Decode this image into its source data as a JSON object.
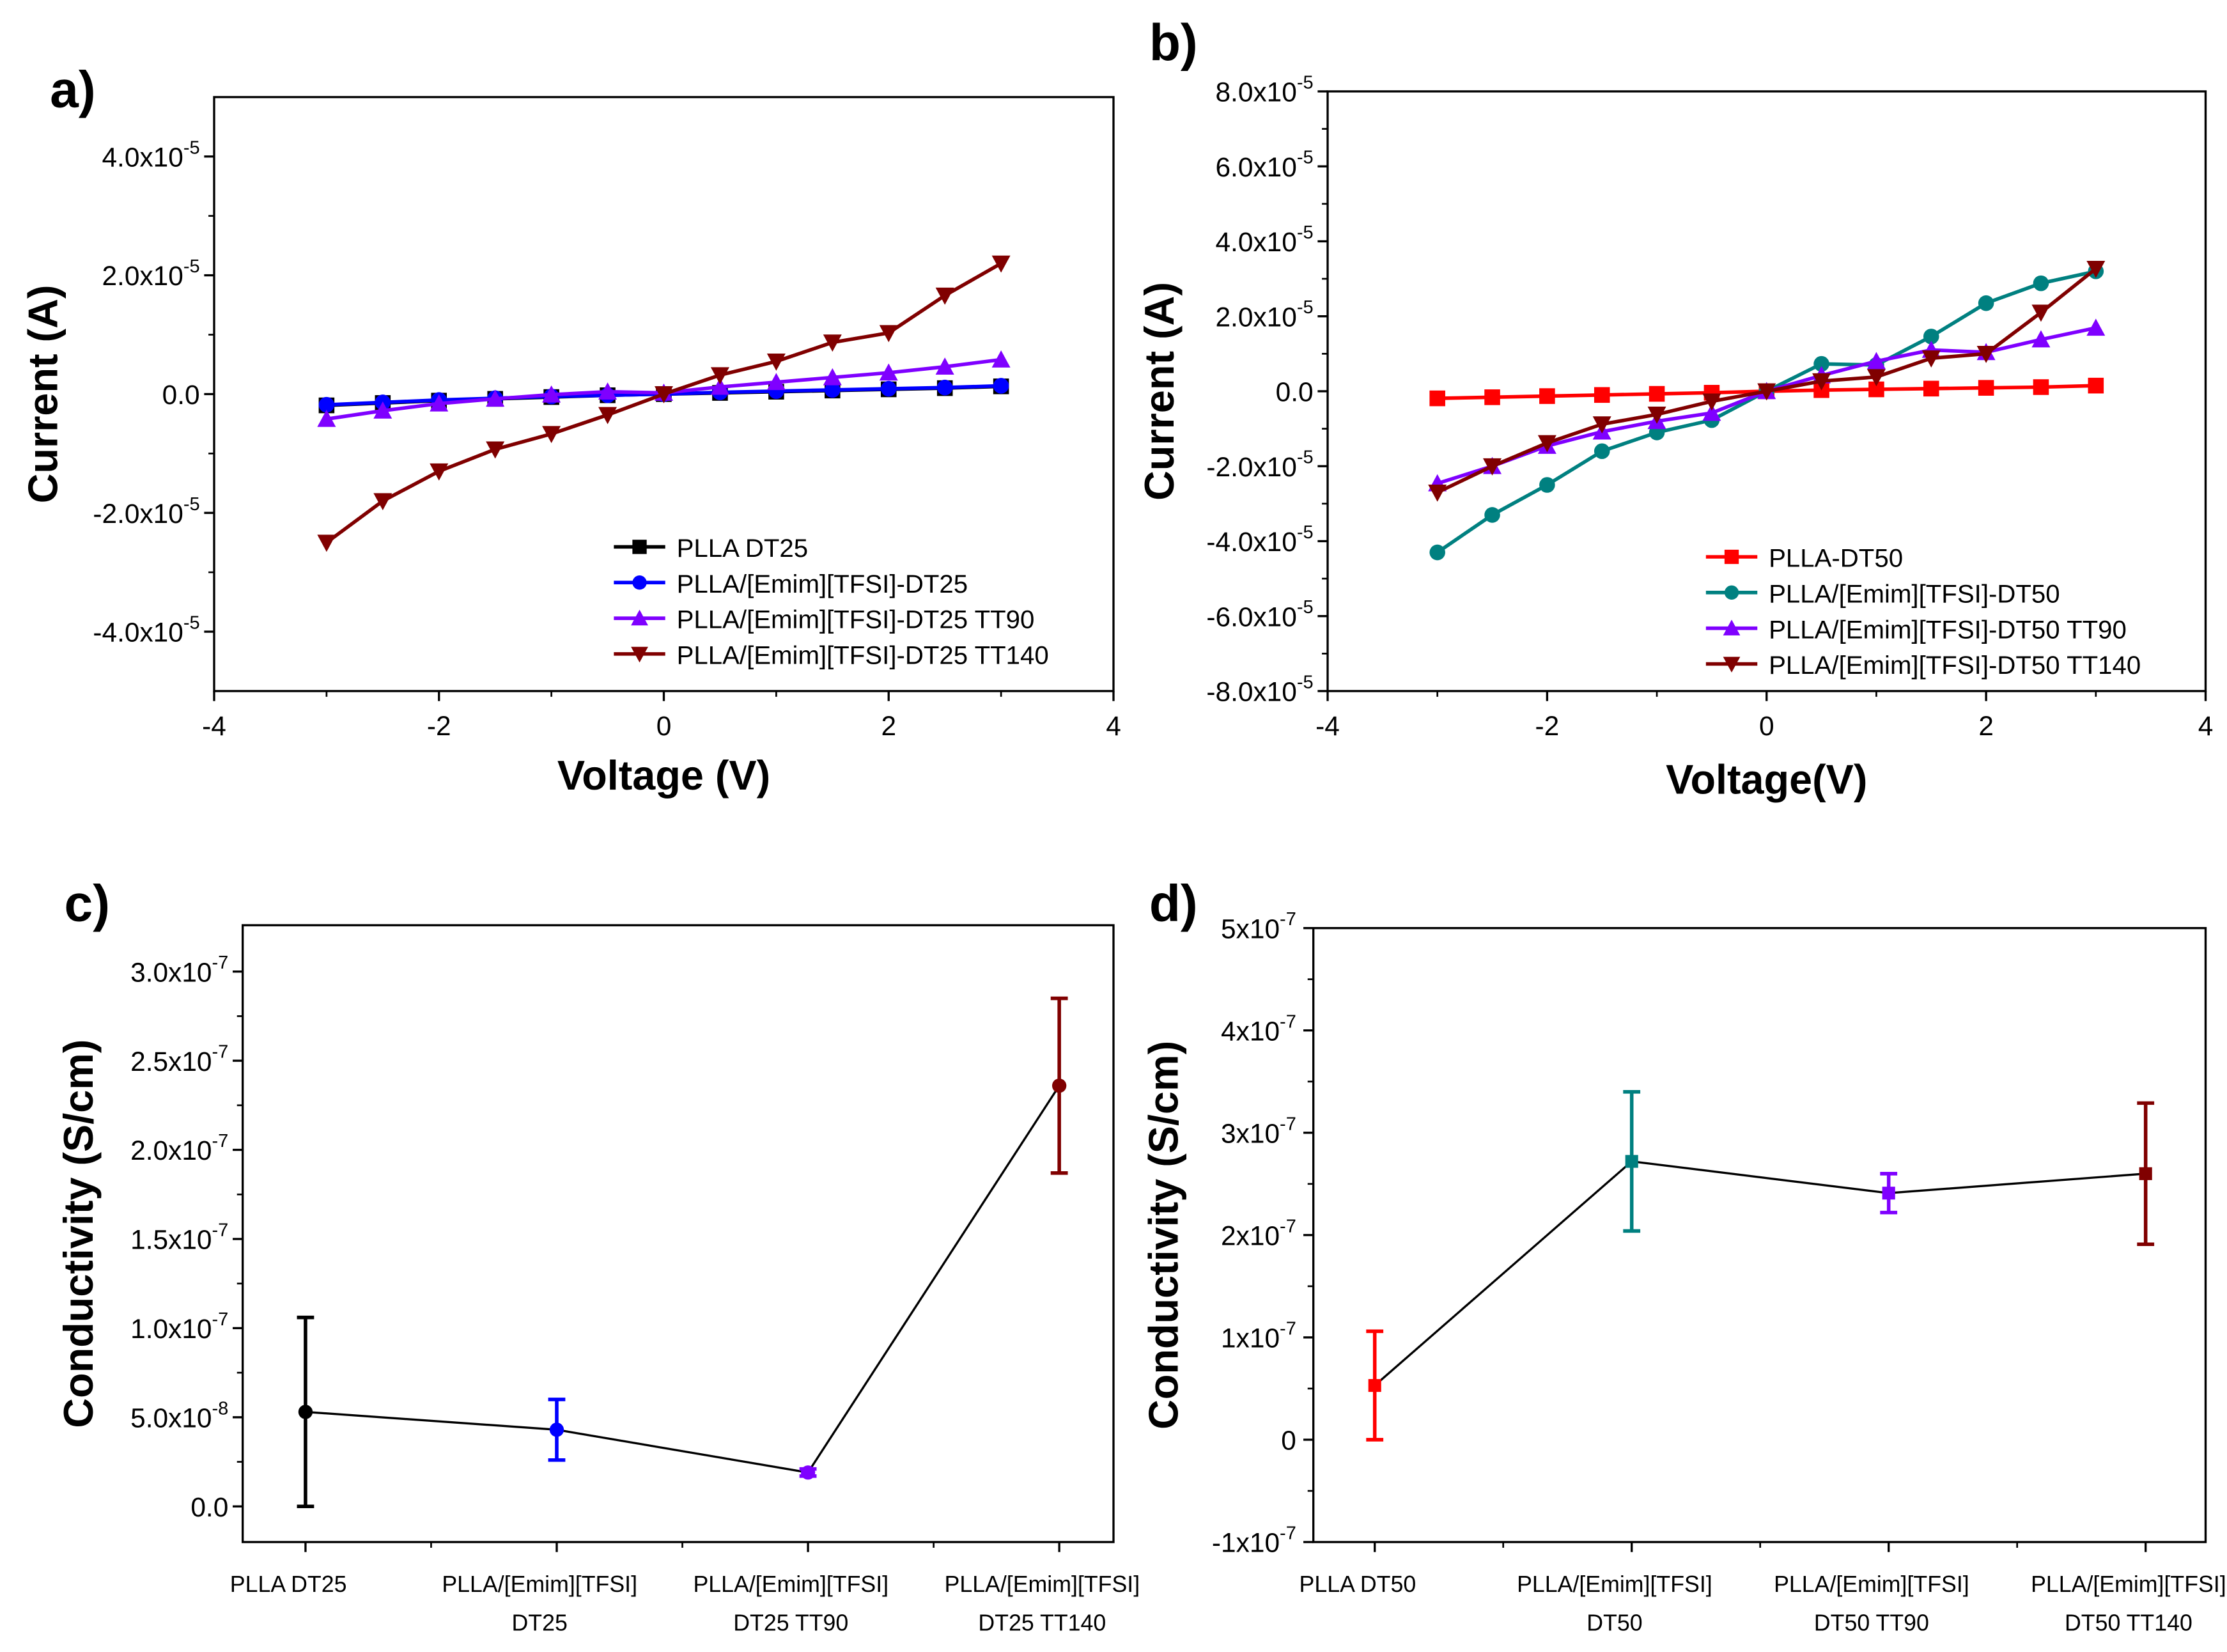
{
  "chart_data": [
    {
      "panel_label": "a)",
      "type": "line",
      "xlabel": "Voltage (V)",
      "ylabel": "Current (A)",
      "xlim": [
        -4,
        4
      ],
      "ylim": [
        -5e-05,
        5e-05
      ],
      "xticks": [
        {
          "v": -4,
          "t": "-4"
        },
        {
          "v": -2,
          "t": "-2"
        },
        {
          "v": 0,
          "t": "0"
        },
        {
          "v": 2,
          "t": "2"
        },
        {
          "v": 4,
          "t": "4"
        }
      ],
      "yticks": [
        {
          "v": 4e-05,
          "b": "4.0x10",
          "e": "-5"
        },
        {
          "v": 2e-05,
          "b": "2.0x10",
          "e": "-5"
        },
        {
          "v": 0,
          "b": "0.0",
          "e": ""
        },
        {
          "v": -2e-05,
          "b": "-2.0x10",
          "e": "-5"
        },
        {
          "v": -4e-05,
          "b": "-4.0x10",
          "e": "-5"
        }
      ],
      "legend_position": "bottom-right",
      "x": [
        -3,
        -2.5,
        -2,
        -1.5,
        -1,
        -0.5,
        0,
        0.5,
        1,
        1.5,
        2,
        2.5,
        3
      ],
      "series": [
        {
          "name": "PLLA DT25",
          "color": "#000000",
          "marker": "square",
          "values": [
            -1.9e-06,
            -1.5e-06,
            -1.1e-06,
            -8e-07,
            -5e-07,
            -2e-07,
            0,
            2e-07,
            4e-07,
            6e-07,
            8e-07,
            1e-06,
            1.3e-06
          ]
        },
        {
          "name": "PLLA/[Emim][TFSI]-DT25",
          "color": "#0000ff",
          "marker": "circle",
          "values": [
            -1.8e-06,
            -1.4e-06,
            -1e-06,
            -7e-07,
            -4e-07,
            -2e-07,
            0,
            3e-07,
            5e-07,
            7e-07,
            9e-07,
            1.1e-06,
            1.4e-06
          ]
        },
        {
          "name": "PLLA/[Emim][TFSI]-DT25 TT90",
          "color": "#7f00ff",
          "marker": "triangle-up",
          "values": [
            -4.2e-06,
            -2.8e-06,
            -1.6e-06,
            -8e-07,
            -1e-07,
            4e-07,
            2e-07,
            1.2e-06,
            2e-06,
            2.8e-06,
            3.6e-06,
            4.6e-06,
            5.8e-06
          ]
        },
        {
          "name": "PLLA/[Emim][TFSI]-DT25 TT140",
          "color": "#800000",
          "marker": "triangle-down",
          "values": [
            -2.5e-05,
            -1.8e-05,
            -1.3e-05,
            -9.3e-06,
            -6.7e-06,
            -3.5e-06,
            0,
            3.2e-06,
            5.5e-06,
            8.7e-06,
            1.03e-05,
            1.66e-05,
            2.2e-05
          ]
        }
      ]
    },
    {
      "panel_label": "b)",
      "type": "line",
      "xlabel": "Voltage(V)",
      "ylabel": "Current (A)",
      "xlim": [
        -4,
        4
      ],
      "ylim": [
        -8e-05,
        8e-05
      ],
      "xticks": [
        {
          "v": -4,
          "t": "-4"
        },
        {
          "v": -2,
          "t": "-2"
        },
        {
          "v": 0,
          "t": "0"
        },
        {
          "v": 2,
          "t": "2"
        },
        {
          "v": 4,
          "t": "4"
        }
      ],
      "yticks": [
        {
          "v": 8e-05,
          "b": "8.0x10",
          "e": "-5"
        },
        {
          "v": 6e-05,
          "b": "6.0x10",
          "e": "-5"
        },
        {
          "v": 4e-05,
          "b": "4.0x10",
          "e": "-5"
        },
        {
          "v": 2e-05,
          "b": "2.0x10",
          "e": "-5"
        },
        {
          "v": 0,
          "b": "0.0",
          "e": ""
        },
        {
          "v": -2e-05,
          "b": "-2.0x10",
          "e": "-5"
        },
        {
          "v": -4e-05,
          "b": "-4.0x10",
          "e": "-5"
        },
        {
          "v": -6e-05,
          "b": "-6.0x10",
          "e": "-5"
        },
        {
          "v": -8e-05,
          "b": "-8.0x10",
          "e": "-5"
        }
      ],
      "legend_position": "bottom-right",
      "x": [
        -3,
        -2.5,
        -2,
        -1.5,
        -1,
        -0.5,
        0,
        0.5,
        1,
        1.5,
        2,
        2.5,
        3
      ],
      "series": [
        {
          "name": "PLLA-DT50",
          "color": "#ff0000",
          "marker": "square",
          "values": [
            -1.9e-06,
            -1.6e-06,
            -1.3e-06,
            -1e-06,
            -7e-07,
            -4e-07,
            0,
            3e-07,
            5e-07,
            7e-07,
            9e-07,
            1.1e-06,
            1.5e-06
          ]
        },
        {
          "name": "PLLA/[Emim][TFSI]-DT50",
          "color": "#008080",
          "marker": "circle",
          "values": [
            -4.3e-05,
            -3.3e-05,
            -2.5e-05,
            -1.6e-05,
            -1.1e-05,
            -7.7e-06,
            0,
            7.3e-06,
            7e-06,
            1.46e-05,
            2.35e-05,
            2.88e-05,
            3.2e-05
          ]
        },
        {
          "name": "PLLA/[Emim][TFSI]-DT50 TT90",
          "color": "#7f00ff",
          "marker": "triangle-up",
          "values": [
            -2.46e-05,
            -2e-05,
            -1.46e-05,
            -1.08e-05,
            -8e-06,
            -5.8e-06,
            0,
            4.2e-06,
            8e-06,
            1.1e-05,
            1.04e-05,
            1.38e-05,
            1.69e-05
          ]
        },
        {
          "name": "PLLA/[Emim][TFSI]-DT50 TT140",
          "color": "#800000",
          "marker": "triangle-down",
          "values": [
            -2.7e-05,
            -2e-05,
            -1.38e-05,
            -8.8e-06,
            -6.2e-06,
            -2.7e-06,
            0,
            2.7e-06,
            3.8e-06,
            8.8e-06,
            1e-05,
            2.1e-05,
            3.27e-05
          ]
        }
      ]
    },
    {
      "panel_label": "c)",
      "type": "line-errorbar",
      "xlabel": "",
      "ylabel": "Conductivity (S/cm)",
      "ylim": [
        -2e-08,
        3.26e-07
      ],
      "yticks": [
        {
          "v": 3e-07,
          "b": "3.0x10",
          "e": "-7"
        },
        {
          "v": 2.5e-07,
          "b": "2.5x10",
          "e": "-7"
        },
        {
          "v": 2e-07,
          "b": "2.0x10",
          "e": "-7"
        },
        {
          "v": 1.5e-07,
          "b": "1.5x10",
          "e": "-7"
        },
        {
          "v": 1e-07,
          "b": "1.0x10",
          "e": "-7"
        },
        {
          "v": 5e-08,
          "b": "5.0x10",
          "e": "-8"
        },
        {
          "v": 0,
          "b": "0.0",
          "e": ""
        }
      ],
      "categories": [
        [
          "PLLA DT25"
        ],
        [
          "PLLA/[Emim][TFSI]",
          "DT25"
        ],
        [
          "PLLA/[Emim][TFSI]",
          "DT25 TT90"
        ],
        [
          "PLLA/[Emim][TFSI]",
          "DT25 TT140"
        ]
      ],
      "values": [
        5.3e-08,
        4.3e-08,
        1.9e-08,
        2.36e-07
      ],
      "errors": [
        5.3e-08,
        1.7e-08,
        2e-09,
        4.9e-08
      ],
      "colors": [
        "#000000",
        "#0000ff",
        "#7f00ff",
        "#800000"
      ]
    },
    {
      "panel_label": "d)",
      "type": "line-errorbar",
      "xlabel": "",
      "ylabel": "Conductivity (S/cm)",
      "ylim": [
        -1e-07,
        5e-07
      ],
      "yticks": [
        {
          "v": 5e-07,
          "b": "5x10",
          "e": "-7"
        },
        {
          "v": 4e-07,
          "b": "4x10",
          "e": "-7"
        },
        {
          "v": 3e-07,
          "b": "3x10",
          "e": "-7"
        },
        {
          "v": 2e-07,
          "b": "2x10",
          "e": "-7"
        },
        {
          "v": 1e-07,
          "b": "1x10",
          "e": "-7"
        },
        {
          "v": 0,
          "b": "0",
          "e": ""
        },
        {
          "v": -1e-07,
          "b": "-1x10",
          "e": "-7"
        }
      ],
      "categories": [
        [
          "PLLA DT50"
        ],
        [
          "PLLA/[Emim][TFSI]",
          "DT50"
        ],
        [
          "PLLA/[Emim][TFSI]",
          "DT50 TT90"
        ],
        [
          "PLLA/[Emim][TFSI]",
          "DT50 TT140"
        ]
      ],
      "values": [
        5.3e-08,
        2.72e-07,
        2.41e-07,
        2.6e-07
      ],
      "errors": [
        5.3e-08,
        6.8e-08,
        1.9e-08,
        6.9e-08
      ],
      "colors": [
        "#ff0000",
        "#008080",
        "#7f00ff",
        "#800000"
      ]
    }
  ]
}
